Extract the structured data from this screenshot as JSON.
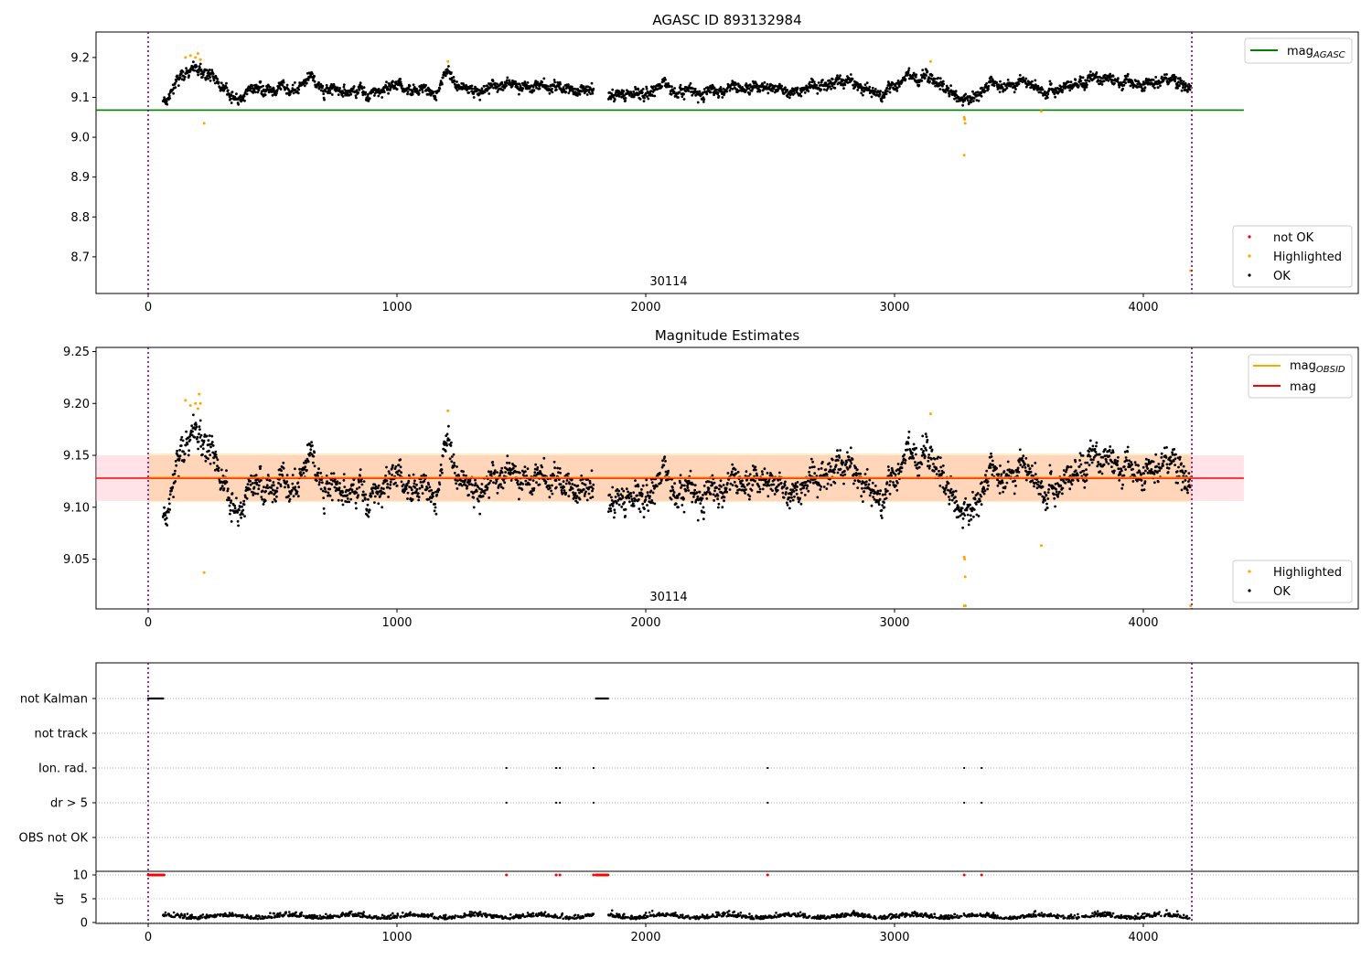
{
  "chart_data": [
    {
      "type": "scatter",
      "title": "AGASC ID 893132984",
      "ylim": [
        8.608,
        9.264
      ],
      "xlim": [
        -210,
        4864
      ],
      "yticks": [
        "8.7",
        "8.8",
        "8.9",
        "9.0",
        "9.1",
        "9.2"
      ],
      "ytick_values": [
        8.7,
        8.8,
        8.9,
        9.0,
        9.1,
        9.2
      ],
      "xticks": [
        "0",
        "1000",
        "2000",
        "3000",
        "4000"
      ],
      "xtick_values": [
        0,
        1000,
        2000,
        3000,
        4000
      ],
      "annotation": "30114",
      "mag_agasc": 9.068,
      "legend_top": {
        "label": "mag",
        "sub": "AGASC",
        "color": "#008000"
      },
      "legend_bottom": [
        {
          "label": "not OK",
          "color": "#ff0000"
        },
        {
          "label": "Highlighted",
          "color": "#ffa500"
        },
        {
          "label": "OK",
          "color": "#000000"
        }
      ],
      "highlighted": [
        [
          150,
          9.2
        ],
        [
          170,
          9.205
        ],
        [
          190,
          9.2
        ],
        [
          200,
          9.21
        ],
        [
          210,
          9.195
        ],
        [
          225,
          9.035
        ],
        [
          1205,
          9.19
        ],
        [
          3145,
          9.19
        ],
        [
          3280,
          9.05
        ],
        [
          3282,
          9.045
        ],
        [
          3284,
          9.035
        ],
        [
          3280,
          8.955
        ],
        [
          3590,
          9.065
        ],
        [
          4190,
          8.665
        ]
      ]
    },
    {
      "type": "scatter",
      "title": "Magnitude Estimates",
      "ylim": [
        9.002,
        9.254
      ],
      "xlim": [
        -210,
        4864
      ],
      "yticks": [
        "9.05",
        "9.10",
        "9.15",
        "9.20",
        "9.25"
      ],
      "ytick_values": [
        9.05,
        9.1,
        9.15,
        9.2,
        9.25
      ],
      "xticks": [
        "0",
        "1000",
        "2000",
        "3000",
        "4000"
      ],
      "xtick_values": [
        0,
        1000,
        2000,
        3000,
        4000
      ],
      "annotation": "30114",
      "mag": 9.128,
      "mag_band": [
        9.106,
        9.15
      ],
      "mag_obsid_band": [
        9.105,
        9.152
      ],
      "legend_top": [
        {
          "label": "mag",
          "sub": "OBSID",
          "color": "#ffa500"
        },
        {
          "label": "mag",
          "sub": "",
          "color": "#ff0000"
        }
      ],
      "legend_bottom": [
        {
          "label": "Highlighted",
          "color": "#ffa500"
        },
        {
          "label": "OK",
          "color": "#000000"
        }
      ],
      "highlighted": [
        [
          150,
          9.203
        ],
        [
          170,
          9.198
        ],
        [
          190,
          9.2
        ],
        [
          200,
          9.195
        ],
        [
          205,
          9.209
        ],
        [
          210,
          9.2
        ],
        [
          225,
          9.037
        ],
        [
          1205,
          9.193
        ],
        [
          3145,
          9.19
        ],
        [
          3280,
          9.052
        ],
        [
          3282,
          9.05
        ],
        [
          3284,
          9.033
        ],
        [
          3280,
          9.005
        ],
        [
          3285,
          9.005
        ],
        [
          3590,
          9.063
        ],
        [
          4190,
          9.005
        ]
      ]
    },
    {
      "type": "scatter",
      "flags": [
        "not Kalman",
        "not track",
        "Ion. rad.",
        "dr > 5",
        "OBS not OK"
      ],
      "flag_events": {
        "not Kalman": [
          [
            0,
            65
          ],
          [
            1800,
            1850
          ]
        ],
        "Ion. rad.": [
          1440,
          1640,
          1655,
          1790,
          2490,
          3280,
          3350
        ],
        "dr > 5": [
          1440,
          1640,
          1655,
          1790,
          2490,
          3280,
          3350
        ]
      },
      "dr_ylabel": "dr",
      "dr_yticks": [
        "0",
        "5",
        "10"
      ],
      "dr_ytick_values": [
        0,
        5,
        10
      ],
      "dr_ylim": [
        -0.2,
        10.77
      ],
      "xticks": [
        "0",
        "1000",
        "2000",
        "3000",
        "4000"
      ],
      "xtick_values": [
        0,
        1000,
        2000,
        3000,
        4000
      ]
    }
  ],
  "trend": [
    [
      60,
      9.09
    ],
    [
      80,
      9.09
    ],
    [
      130,
      9.15
    ],
    [
      180,
      9.18
    ],
    [
      250,
      9.16
    ],
    [
      300,
      9.12
    ],
    [
      380,
      9.09
    ],
    [
      450,
      9.13
    ],
    [
      500,
      9.12
    ],
    [
      600,
      9.12
    ],
    [
      650,
      9.16
    ],
    [
      700,
      9.12
    ],
    [
      800,
      9.11
    ],
    [
      900,
      9.11
    ],
    [
      1000,
      9.13
    ],
    [
      1100,
      9.12
    ],
    [
      1150,
      9.1
    ],
    [
      1200,
      9.17
    ],
    [
      1250,
      9.12
    ],
    [
      1350,
      9.12
    ],
    [
      1450,
      9.14
    ],
    [
      1550,
      9.12
    ],
    [
      1650,
      9.13
    ],
    [
      1750,
      9.12
    ],
    [
      1790,
      9.12
    ],
    [
      1850,
      9.1
    ],
    [
      1950,
      9.11
    ],
    [
      2100,
      9.12
    ],
    [
      2250,
      9.11
    ],
    [
      2350,
      9.14
    ],
    [
      2450,
      9.12
    ],
    [
      2600,
      9.12
    ],
    [
      2700,
      9.13
    ],
    [
      2800,
      9.14
    ],
    [
      2880,
      9.13
    ],
    [
      2950,
      9.1
    ],
    [
      3050,
      9.15
    ],
    [
      3150,
      9.15
    ],
    [
      3250,
      9.1
    ],
    [
      3300,
      9.09
    ],
    [
      3400,
      9.14
    ],
    [
      3500,
      9.14
    ],
    [
      3600,
      9.12
    ],
    [
      3700,
      9.13
    ],
    [
      3800,
      9.14
    ],
    [
      3900,
      9.14
    ],
    [
      4000,
      9.13
    ],
    [
      4100,
      9.15
    ],
    [
      4190,
      9.14
    ]
  ],
  "obs_start": 0,
  "obs_end": 4195
}
